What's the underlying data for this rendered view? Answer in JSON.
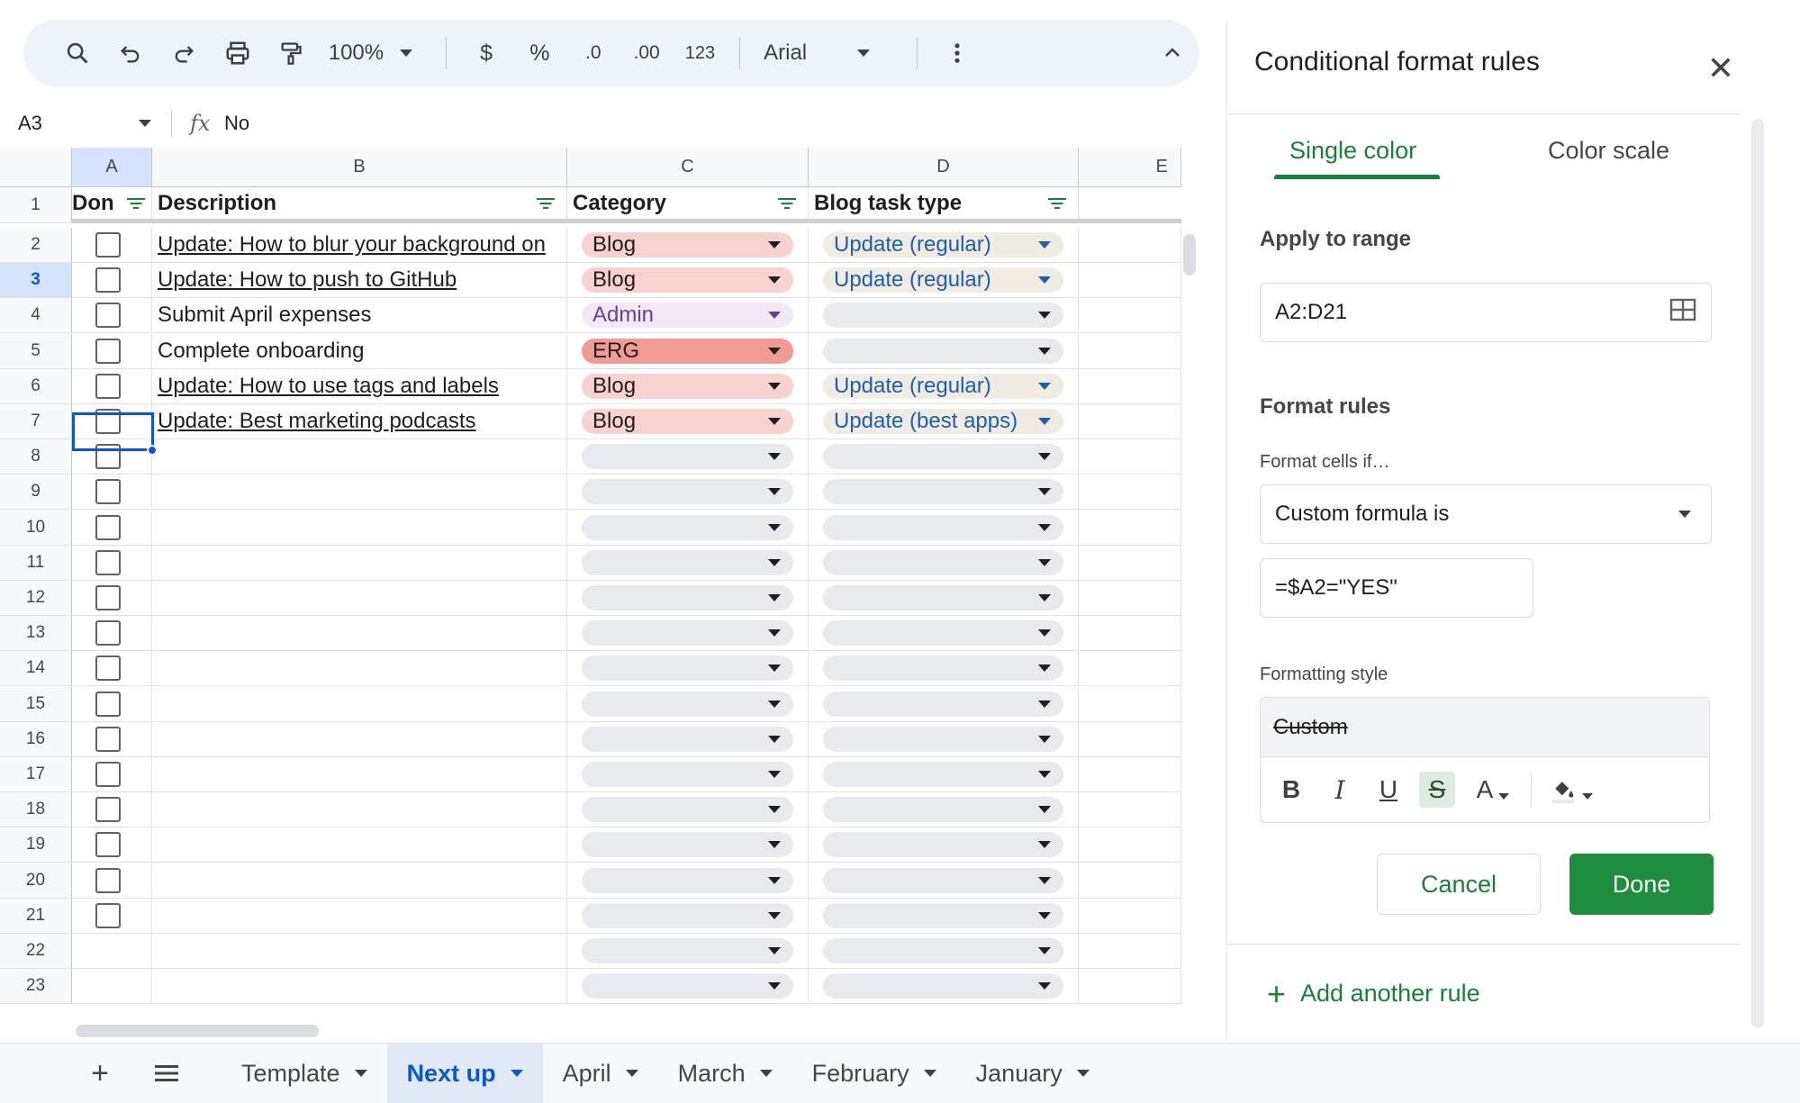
{
  "toolbar": {
    "zoom": "100%",
    "currency": "$",
    "percent": "%",
    "decrease_decimals": ".0",
    "increase_decimals": ".00",
    "number_format": "123",
    "font": "Arial"
  },
  "formula_bar": {
    "cell_ref": "A3",
    "fx": "fx",
    "value": "No"
  },
  "columns": [
    "A",
    "B",
    "C",
    "D",
    "E"
  ],
  "header_row": {
    "done": "Don",
    "description": "Description",
    "category": "Category",
    "blog_task_type": "Blog task type"
  },
  "rows": [
    {
      "n": "2",
      "desc": "Update: How to blur your background on",
      "link": true,
      "category": "Blog",
      "type": "Update (regular)"
    },
    {
      "n": "3",
      "desc": "Update: How to push to GitHub",
      "link": true,
      "category": "Blog",
      "type": "Update (regular)"
    },
    {
      "n": "4",
      "desc": "Submit April expenses",
      "link": false,
      "category": "Admin",
      "type": ""
    },
    {
      "n": "5",
      "desc": "Complete onboarding",
      "link": false,
      "category": "ERG",
      "type": ""
    },
    {
      "n": "6",
      "desc": "Update: How to use tags and labels",
      "link": true,
      "category": "Blog",
      "type": "Update (regular)"
    },
    {
      "n": "7",
      "desc": "Update: Best marketing podcasts",
      "link": true,
      "category": "Blog",
      "type": "Update (best apps)"
    },
    {
      "n": "8"
    },
    {
      "n": "9"
    },
    {
      "n": "10"
    },
    {
      "n": "11"
    },
    {
      "n": "12"
    },
    {
      "n": "13"
    },
    {
      "n": "14"
    },
    {
      "n": "15"
    },
    {
      "n": "16"
    },
    {
      "n": "17"
    },
    {
      "n": "18"
    },
    {
      "n": "19"
    },
    {
      "n": "20"
    },
    {
      "n": "21"
    },
    {
      "n": "22",
      "nocheck": true
    },
    {
      "n": "23",
      "nocheck": true
    }
  ],
  "category_colors": {
    "Blog": {
      "bg": "#f9d2cf",
      "fg": "#1f1f1f"
    },
    "Admin": {
      "bg": "#f3e8f5",
      "fg": "#6a3d9a"
    },
    "ERG": {
      "bg": "#f29b96",
      "fg": "#1f1f1f"
    }
  },
  "type_color": {
    "bg": "#f0ece3",
    "fg": "#1a5fb4"
  },
  "sheet_tabs": [
    {
      "label": "Template",
      "active": false
    },
    {
      "label": "Next up",
      "active": true
    },
    {
      "label": "April",
      "active": false
    },
    {
      "label": "March",
      "active": false
    },
    {
      "label": "February",
      "active": false
    },
    {
      "label": "January",
      "active": false
    }
  ],
  "panel": {
    "title": "Conditional format rules",
    "tab_single": "Single color",
    "tab_scale": "Color scale",
    "apply_label": "Apply to range",
    "range": "A2:D21",
    "rules_label": "Format rules",
    "format_if_label": "Format cells if…",
    "condition": "Custom formula is",
    "formula": "=$A2=\"YES\"",
    "style_label": "Formatting style",
    "style_preview": "Custom",
    "cancel": "Cancel",
    "done": "Done",
    "add_rule": "Add another rule"
  },
  "colors": {
    "accent_green": "#188038",
    "selection_blue": "#0b57d0"
  }
}
